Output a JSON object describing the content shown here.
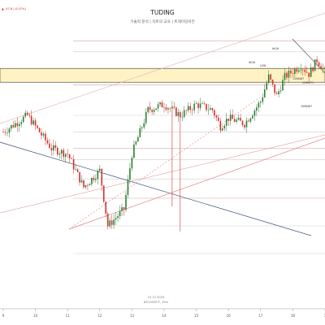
{
  "header": {
    "title": "TUDING",
    "subtitle": "기술적 분석 | 차트의 교육 | 트레이딩비전",
    "price_readout": "▲ -47.8 (-0.07%)"
  },
  "footer": {
    "date_label": "15 12 2024",
    "symbol_label": "BTCUSDT.P, 15m"
  },
  "chart_data": {
    "type": "candlestick",
    "title": "TUDING",
    "x_ticks": [
      "9",
      "10",
      "11",
      "12",
      "13",
      "14",
      "15",
      "16",
      "17",
      "18",
      "1"
    ],
    "y_range": [
      0,
      100
    ],
    "price_series": [
      [
        -6,
        66
      ],
      [
        0,
        64
      ],
      [
        3,
        70
      ],
      [
        6,
        58
      ],
      [
        8,
        56
      ],
      [
        10,
        44
      ],
      [
        12,
        50
      ],
      [
        13,
        30
      ],
      [
        15,
        36
      ],
      [
        16,
        56
      ],
      [
        17,
        64
      ],
      [
        18,
        72
      ],
      [
        20,
        74
      ],
      [
        22,
        70
      ],
      [
        24,
        74
      ],
      [
        26,
        72
      ],
      [
        27,
        66
      ],
      [
        28,
        69
      ],
      [
        30,
        67
      ],
      [
        31,
        71
      ],
      [
        32,
        75
      ],
      [
        33,
        84
      ],
      [
        34,
        77
      ],
      [
        35,
        84
      ],
      [
        36,
        86
      ],
      [
        37,
        88
      ],
      [
        38,
        85
      ],
      [
        39,
        90
      ],
      [
        40,
        86
      ],
      [
        41,
        82
      ],
      [
        42,
        84
      ],
      [
        42.5,
        72
      ],
      [
        43,
        70
      ],
      [
        44,
        76
      ],
      [
        45,
        79
      ],
      [
        46,
        84
      ],
      [
        47,
        82
      ],
      [
        48,
        80
      ],
      [
        49,
        78
      ]
    ],
    "volume_spikes": [
      [
        13,
        30
      ],
      [
        21,
        37
      ],
      [
        22,
        28
      ]
    ],
    "ohlc_labels": [
      "HIGH",
      "LOW",
      "HIGH",
      "1106467",
      "1096471",
      "1096467"
    ],
    "colors": {
      "up": "#2e7d32",
      "down": "#d32f2f",
      "zone_fill": "#fff3c4",
      "zone_border": "#333333"
    },
    "horizontal_levels": [
      97,
      93,
      84,
      81,
      70,
      64,
      58,
      54,
      47,
      40,
      30,
      20
    ],
    "zone": [
      82,
      87
    ],
    "grid": false
  }
}
